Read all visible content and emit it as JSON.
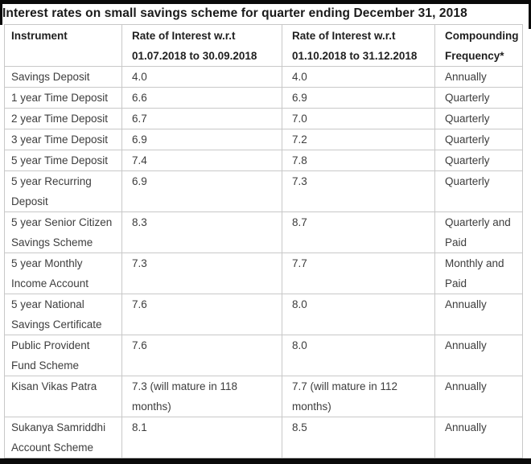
{
  "title": "Interest rates on small savings scheme for quarter ending December 31, 2018",
  "colors": {
    "frame_bar": "#0a0a0a",
    "table_border": "#c8c8c8",
    "title_text": "#1a1a1a",
    "header_text": "#1f1f1f",
    "body_text": "#3d3d3d",
    "background": "#ffffff"
  },
  "table": {
    "headers": [
      {
        "line1": "Instrument",
        "line2": ""
      },
      {
        "line1": "Rate of Interest w.r.t",
        "line2": "01.07.2018 to 30.09.2018"
      },
      {
        "line1": "Rate of Interest w.r.t",
        "line2": "01.10.2018 to 31.12.2018"
      },
      {
        "line1": "Compounding",
        "line2": "Frequency*"
      }
    ],
    "rows": [
      {
        "instrument": "Savings Deposit",
        "rate_jul_sep_2018": "4.0",
        "rate_oct_dec_2018": "4.0",
        "compounding_frequency": "Annually"
      },
      {
        "instrument": "1 year Time Deposit",
        "rate_jul_sep_2018": "6.6",
        "rate_oct_dec_2018": "6.9",
        "compounding_frequency": "Quarterly"
      },
      {
        "instrument": "2 year Time Deposit",
        "rate_jul_sep_2018": "6.7",
        "rate_oct_dec_2018": "7.0",
        "compounding_frequency": "Quarterly"
      },
      {
        "instrument": "3 year Time Deposit",
        "rate_jul_sep_2018": "6.9",
        "rate_oct_dec_2018": "7.2",
        "compounding_frequency": "Quarterly"
      },
      {
        "instrument": "5 year Time Deposit",
        "rate_jul_sep_2018": "7.4",
        "rate_oct_dec_2018": "7.8",
        "compounding_frequency": "Quarterly"
      },
      {
        "instrument": "5 year Recurring Deposit",
        "rate_jul_sep_2018": "6.9",
        "rate_oct_dec_2018": "7.3",
        "compounding_frequency": "Quarterly"
      },
      {
        "instrument": "5 year Senior Citizen Savings Scheme",
        "rate_jul_sep_2018": "8.3",
        "rate_oct_dec_2018": "8.7",
        "compounding_frequency": "Quarterly and Paid"
      },
      {
        "instrument": "5 year Monthly Income Account",
        "rate_jul_sep_2018": "7.3",
        "rate_oct_dec_2018": "7.7",
        "compounding_frequency": "Monthly and Paid"
      },
      {
        "instrument": "5 year National Savings Certificate",
        "rate_jul_sep_2018": "7.6",
        "rate_oct_dec_2018": "8.0",
        "compounding_frequency": "Annually"
      },
      {
        "instrument": "Public Provident Fund Scheme",
        "rate_jul_sep_2018": "7.6",
        "rate_oct_dec_2018": "8.0",
        "compounding_frequency": "Annually"
      },
      {
        "instrument": "Kisan Vikas Patra",
        "rate_jul_sep_2018": "7.3 (will mature in 118 months)",
        "rate_oct_dec_2018": "7.7 (will mature in 112 months)",
        "compounding_frequency": "Annually"
      },
      {
        "instrument": "Sukanya Samriddhi Account Scheme",
        "rate_jul_sep_2018": "8.1",
        "rate_oct_dec_2018": "8.5",
        "compounding_frequency": "Annually"
      }
    ]
  }
}
